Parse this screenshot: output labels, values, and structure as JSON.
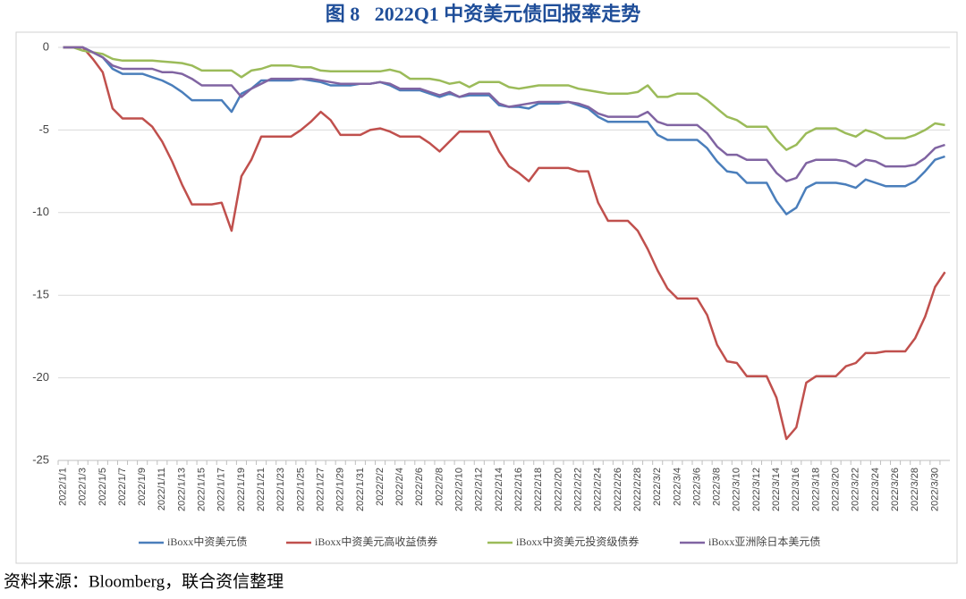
{
  "chart_data": {
    "type": "line",
    "title": "图 8   2022Q1 中资美元债回报率走势",
    "source": "资料来源：Bloomberg，联合资信整理",
    "categories": [
      "2022/1/1",
      null,
      "2022/1/3",
      null,
      "2022/1/5",
      null,
      "2022/1/7",
      null,
      "2022/1/9",
      null,
      "2022/1/11",
      null,
      "2022/1/13",
      null,
      "2022/1/15",
      null,
      "2022/1/17",
      null,
      "2022/1/19",
      null,
      "2022/1/21",
      null,
      "2022/1/23",
      null,
      "2022/1/25",
      null,
      "2022/1/27",
      null,
      "2022/1/29",
      null,
      "2022/1/31",
      null,
      "2022/2/2",
      null,
      "2022/2/4",
      null,
      "2022/2/6",
      null,
      "2022/2/8",
      null,
      "2022/2/10",
      null,
      "2022/2/12",
      null,
      "2022/2/14",
      null,
      "2022/2/16",
      null,
      "2022/2/18",
      null,
      "2022/2/20",
      null,
      "2022/2/22",
      null,
      "2022/2/24",
      null,
      "2022/2/26",
      null,
      "2022/2/28",
      null,
      "2022/3/2",
      null,
      "2022/3/4",
      null,
      "2022/3/6",
      null,
      "2022/3/8",
      null,
      "2022/3/10",
      null,
      "2022/3/12",
      null,
      "2022/3/14",
      null,
      "2022/3/16",
      null,
      "2022/3/18",
      null,
      "2022/3/20",
      null,
      "2022/3/22",
      null,
      "2022/3/24",
      null,
      "2022/3/26",
      null,
      "2022/3/28",
      null,
      "2022/3/30",
      null
    ],
    "series": [
      {
        "name": "iBoxx中资美元债",
        "color": "#4a7ebb",
        "values": [
          0,
          0,
          0,
          -0.3,
          -0.6,
          -1.3,
          -1.6,
          -1.6,
          -1.6,
          -1.8,
          -2.0,
          -2.3,
          -2.7,
          -3.2,
          -3.2,
          -3.2,
          -3.2,
          -3.9,
          -2.8,
          -2.5,
          -2.0,
          -2.0,
          -2.0,
          -2.0,
          -1.9,
          -2.0,
          -2.1,
          -2.3,
          -2.3,
          -2.3,
          -2.2,
          -2.2,
          -2.1,
          -2.3,
          -2.6,
          -2.6,
          -2.6,
          -2.8,
          -3.0,
          -2.8,
          -3.0,
          -2.9,
          -2.9,
          -2.9,
          -3.5,
          -3.6,
          -3.6,
          -3.7,
          -3.4,
          -3.4,
          -3.4,
          -3.3,
          -3.5,
          -3.7,
          -4.2,
          -4.5,
          -4.5,
          -4.5,
          -4.5,
          -4.5,
          -5.3,
          -5.6,
          -5.6,
          -5.6,
          -5.6,
          -6.1,
          -6.9,
          -7.5,
          -7.6,
          -8.2,
          -8.2,
          -8.2,
          -9.3,
          -10.1,
          -9.7,
          -8.5,
          -8.2,
          -8.2,
          -8.2,
          -8.3,
          -8.5,
          -8.0,
          -8.2,
          -8.4,
          -8.4,
          -8.4,
          -8.1,
          -7.5,
          -6.8,
          -6.6
        ]
      },
      {
        "name": "iBoxx中资美元高收益债券",
        "color": "#c0504d",
        "values": [
          0,
          0,
          0,
          -0.7,
          -1.5,
          -3.7,
          -4.3,
          -4.3,
          -4.3,
          -4.8,
          -5.7,
          -6.9,
          -8.3,
          -9.5,
          -9.5,
          -9.5,
          -9.4,
          -11.1,
          -7.8,
          -6.8,
          -5.4,
          -5.4,
          -5.4,
          -5.4,
          -5.0,
          -4.5,
          -3.9,
          -4.4,
          -5.3,
          -5.3,
          -5.3,
          -5.0,
          -4.9,
          -5.1,
          -5.4,
          -5.4,
          -5.4,
          -5.8,
          -6.3,
          -5.7,
          -5.1,
          -5.1,
          -5.1,
          -5.1,
          -6.3,
          -7.2,
          -7.6,
          -8.1,
          -7.3,
          -7.3,
          -7.3,
          -7.3,
          -7.5,
          -7.5,
          -9.4,
          -10.5,
          -10.5,
          -10.5,
          -11.1,
          -12.2,
          -13.5,
          -14.6,
          -15.2,
          -15.2,
          -15.2,
          -16.2,
          -18.0,
          -19.0,
          -19.1,
          -19.9,
          -19.9,
          -19.9,
          -21.2,
          -23.7,
          -23.0,
          -20.3,
          -19.9,
          -19.9,
          -19.9,
          -19.3,
          -19.1,
          -18.5,
          -18.5,
          -18.4,
          -18.4,
          -18.4,
          -17.6,
          -16.3,
          -14.5,
          -13.6
        ]
      },
      {
        "name": "iBoxx中资美元投资级债券",
        "color": "#9bbb59",
        "values": [
          0,
          0,
          -0.2,
          -0.3,
          -0.4,
          -0.7,
          -0.8,
          -0.8,
          -0.8,
          -0.8,
          -0.85,
          -0.9,
          -0.95,
          -1.1,
          -1.4,
          -1.4,
          -1.4,
          -1.4,
          -1.8,
          -1.4,
          -1.3,
          -1.1,
          -1.1,
          -1.1,
          -1.2,
          -1.2,
          -1.4,
          -1.45,
          -1.45,
          -1.45,
          -1.45,
          -1.45,
          -1.45,
          -1.35,
          -1.5,
          -1.9,
          -1.9,
          -1.9,
          -2.0,
          -2.2,
          -2.1,
          -2.4,
          -2.1,
          -2.1,
          -2.1,
          -2.4,
          -2.5,
          -2.4,
          -2.3,
          -2.3,
          -2.3,
          -2.3,
          -2.5,
          -2.6,
          -2.7,
          -2.8,
          -2.8,
          -2.8,
          -2.7,
          -2.3,
          -3.0,
          -3.0,
          -2.8,
          -2.8,
          -2.8,
          -3.2,
          -3.7,
          -4.2,
          -4.4,
          -4.8,
          -4.8,
          -4.8,
          -5.6,
          -6.2,
          -5.9,
          -5.2,
          -4.9,
          -4.9,
          -4.9,
          -5.2,
          -5.4,
          -5.0,
          -5.2,
          -5.5,
          -5.5,
          -5.5,
          -5.3,
          -5.0,
          -4.6,
          -4.7
        ]
      },
      {
        "name": "iBoxx亚洲除日本美元债",
        "color": "#8064a2",
        "values": [
          0,
          0,
          0,
          -0.3,
          -0.6,
          -1.1,
          -1.3,
          -1.3,
          -1.3,
          -1.3,
          -1.5,
          -1.5,
          -1.6,
          -1.9,
          -2.3,
          -2.3,
          -2.3,
          -2.3,
          -3.0,
          -2.5,
          -2.2,
          -1.9,
          -1.9,
          -1.9,
          -1.9,
          -1.9,
          -2.0,
          -2.1,
          -2.2,
          -2.2,
          -2.2,
          -2.2,
          -2.1,
          -2.2,
          -2.5,
          -2.5,
          -2.5,
          -2.7,
          -2.9,
          -2.7,
          -3.0,
          -2.8,
          -2.8,
          -2.8,
          -3.4,
          -3.6,
          -3.5,
          -3.4,
          -3.3,
          -3.3,
          -3.3,
          -3.3,
          -3.4,
          -3.6,
          -4.0,
          -4.2,
          -4.2,
          -4.2,
          -4.2,
          -3.9,
          -4.5,
          -4.7,
          -4.7,
          -4.7,
          -4.7,
          -5.2,
          -6.0,
          -6.5,
          -6.5,
          -6.8,
          -6.8,
          -6.8,
          -7.6,
          -8.1,
          -7.9,
          -7.0,
          -6.8,
          -6.8,
          -6.8,
          -6.9,
          -7.2,
          -6.8,
          -6.9,
          -7.2,
          -7.2,
          -7.2,
          -7.1,
          -6.7,
          -6.1,
          -5.9
        ]
      }
    ],
    "ylim": [
      -25,
      0
    ],
    "yticks": [
      0,
      -5,
      -10,
      -15,
      -20,
      -25
    ],
    "grid": true,
    "legend": "bottom"
  }
}
